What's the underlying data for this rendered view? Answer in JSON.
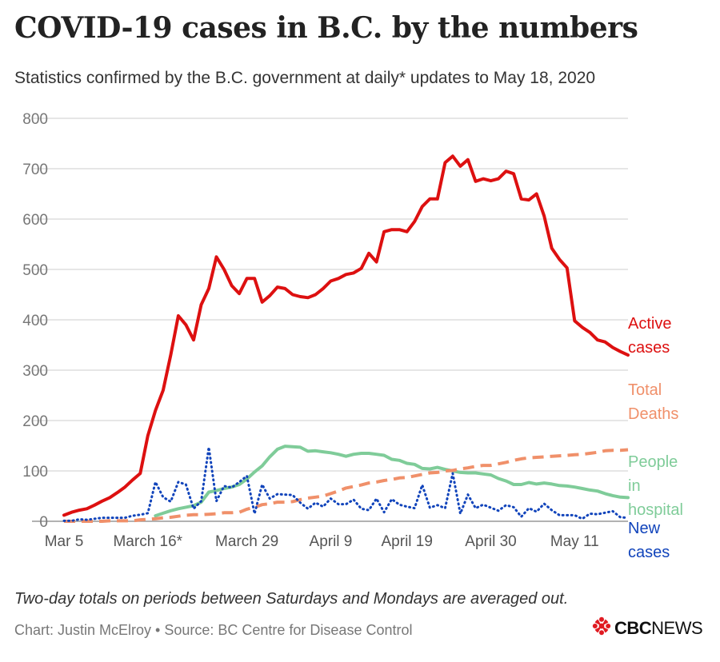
{
  "header": {
    "title": "COVID-19 cases in B.C. by the numbers",
    "subtitle": "Statistics confirmed by the B.C. government at daily* updates to May 18, 2020"
  },
  "footer": {
    "note": "Two-day totals on periods between Saturdays and Mondays are averaged out.",
    "credit": "Chart: Justin McElroy • Source: BC Centre for Disease Control",
    "logo_text": "CBC NEWS",
    "logo_word_1": "CBC",
    "logo_word_2": "NEWS"
  },
  "colors": {
    "active": "#dd1010",
    "deaths": "#f0906a",
    "hospital": "#7fcc99",
    "new": "#1144bb",
    "logo_red": "#e01b22"
  },
  "chart_data": {
    "type": "line",
    "x": [
      "Mar 5",
      "Mar 6",
      "Mar 7",
      "Mar 8",
      "Mar 9",
      "Mar 10",
      "Mar 11",
      "Mar 12",
      "Mar 13",
      "Mar 14",
      "Mar 15",
      "Mar 16",
      "Mar 17",
      "Mar 18",
      "Mar 19",
      "Mar 20",
      "Mar 21",
      "Mar 22",
      "Mar 23",
      "Mar 24",
      "Mar 25",
      "Mar 26",
      "Mar 27",
      "Mar 28",
      "Mar 29",
      "Mar 30",
      "Mar 31",
      "Apr 1",
      "Apr 2",
      "Apr 3",
      "Apr 4",
      "Apr 5",
      "Apr 6",
      "Apr 7",
      "Apr 8",
      "Apr 9",
      "Apr 10",
      "Apr 11",
      "Apr 12",
      "Apr 13",
      "Apr 14",
      "Apr 15",
      "Apr 16",
      "Apr 17",
      "Apr 18",
      "Apr 19",
      "Apr 20",
      "Apr 21",
      "Apr 22",
      "Apr 23",
      "Apr 24",
      "Apr 25",
      "Apr 26",
      "Apr 27",
      "Apr 28",
      "Apr 29",
      "Apr 30",
      "May 1",
      "May 2",
      "May 3",
      "May 4",
      "May 5",
      "May 6",
      "May 7",
      "May 8",
      "May 9",
      "May 10",
      "May 11",
      "May 12",
      "May 13",
      "May 14",
      "May 15",
      "May 16",
      "May 17",
      "May 18"
    ],
    "x_tick_labels": [
      {
        "index": 0,
        "label": "Mar 5"
      },
      {
        "index": 11,
        "label": "March 16*"
      },
      {
        "index": 24,
        "label": "March 29"
      },
      {
        "index": 35,
        "label": "April 9"
      },
      {
        "index": 45,
        "label": "April 19"
      },
      {
        "index": 56,
        "label": "April 30"
      },
      {
        "index": 67,
        "label": "May 11"
      }
    ],
    "ylim": [
      0,
      800
    ],
    "y_ticks": [
      0,
      100,
      200,
      300,
      400,
      500,
      600,
      700,
      800
    ],
    "grid": true,
    "legend": "direct labels at right end of each line",
    "series": [
      {
        "key": "active",
        "name": "Active cases",
        "label_lines": [
          "Active",
          "cases"
        ],
        "style": "solid",
        "values": [
          12,
          18,
          22,
          25,
          32,
          40,
          47,
          57,
          68,
          82,
          95,
          170,
          220,
          260,
          330,
          408,
          390,
          360,
          430,
          462,
          525,
          500,
          468,
          452,
          482,
          482,
          435,
          448,
          465,
          462,
          450,
          446,
          444,
          450,
          462,
          477,
          482,
          490,
          493,
          502,
          532,
          515,
          575,
          579,
          579,
          575,
          595,
          625,
          640,
          640,
          712,
          725,
          705,
          718,
          675,
          680,
          676,
          680,
          695,
          690,
          640,
          638,
          650,
          606,
          542,
          520,
          503,
          398,
          385,
          375,
          360,
          356,
          345,
          337,
          330
        ]
      },
      {
        "key": "deaths",
        "name": "Total Deaths",
        "label_lines": [
          "Total",
          "Deaths"
        ],
        "style": "dashed",
        "values": [
          0,
          0,
          0,
          0,
          0,
          0,
          1,
          1,
          1,
          1,
          3,
          4,
          5,
          7,
          8,
          10,
          12,
          13,
          13,
          14,
          15,
          17,
          17,
          18,
          24,
          28,
          33,
          35,
          38,
          38,
          39,
          43,
          46,
          48,
          50,
          55,
          60,
          66,
          69,
          72,
          76,
          78,
          81,
          83,
          86,
          87,
          90,
          93,
          96,
          97,
          100,
          101,
          104,
          106,
          109,
          111,
          111,
          114,
          117,
          121,
          124,
          126,
          127,
          128,
          129,
          130,
          131,
          132,
          133,
          135,
          137,
          140,
          141,
          141,
          142
        ]
      },
      {
        "key": "hospital",
        "name": "People in hospital",
        "label_lines": [
          "People",
          "in",
          "hospital"
        ],
        "style": "solid",
        "values": [
          null,
          null,
          null,
          null,
          null,
          null,
          null,
          null,
          null,
          null,
          null,
          null,
          11,
          16,
          21,
          25,
          28,
          31,
          38,
          58,
          61,
          65,
          68,
          73,
          84,
          98,
          110,
          128,
          143,
          149,
          148,
          147,
          139,
          140,
          138,
          136,
          133,
          129,
          133,
          135,
          135,
          133,
          131,
          123,
          121,
          115,
          113,
          105,
          104,
          107,
          103,
          100,
          97,
          96,
          96,
          94,
          92,
          85,
          80,
          73,
          73,
          77,
          74,
          76,
          74,
          71,
          70,
          68,
          65,
          62,
          60,
          55,
          51,
          48,
          47
        ]
      },
      {
        "key": "new",
        "name": "New cases",
        "label_lines": [
          "New",
          "cases"
        ],
        "style": "dotted",
        "values": [
          1,
          1,
          4,
          3,
          5,
          7,
          7,
          7,
          7,
          11,
          13,
          16,
          78,
          48,
          39,
          78,
          73,
          25,
          40,
          147,
          40,
          70,
          67,
          78,
          90,
          15,
          73,
          45,
          54,
          53,
          52,
          37,
          25,
          37,
          29,
          45,
          34,
          34,
          43,
          25,
          22,
          45,
          18,
          44,
          33,
          29,
          26,
          72,
          27,
          32,
          26,
          95,
          15,
          53,
          26,
          33,
          27,
          21,
          32,
          28,
          9,
          26,
          19,
          35,
          22,
          12,
          12,
          12,
          5,
          15,
          14,
          17,
          20,
          8,
          7
        ]
      }
    ]
  }
}
